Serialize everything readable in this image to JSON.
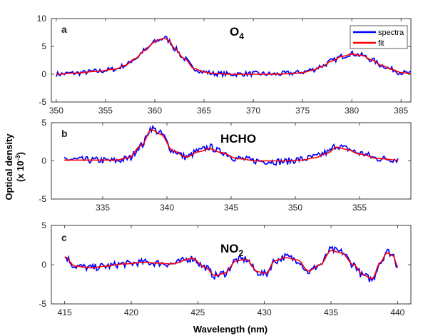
{
  "figure": {
    "ylabel": "Optical density",
    "ylabel_unit_prefix": "(x 10",
    "ylabel_unit_exp": "-3",
    "ylabel_unit_suffix": ")",
    "xlabel": "Wavelength (nm)"
  },
  "legend": {
    "spectra": "spectra",
    "fit": "fit",
    "spectra_color": "#0000ff",
    "fit_color": "#ff0000"
  },
  "chart_data": [
    {
      "type": "line",
      "panel": "a",
      "species_main": "O",
      "species_sub": "4",
      "xlim": [
        349.5,
        386
      ],
      "ylim": [
        -5,
        10
      ],
      "xticks": [
        350,
        355,
        360,
        365,
        370,
        375,
        380,
        385
      ],
      "yticks": [
        -5,
        0,
        5,
        10
      ],
      "series": [
        {
          "name": "spectra",
          "x": [
            350,
            352,
            354,
            356,
            357,
            358,
            359,
            360,
            360.5,
            361,
            361.5,
            362,
            363,
            364,
            365,
            366,
            368,
            370,
            372,
            374,
            375,
            376,
            377,
            378,
            379,
            380,
            381,
            382,
            383,
            384,
            385,
            386
          ],
          "y": [
            0,
            0.2,
            0.5,
            0.9,
            1.6,
            2.8,
            4.3,
            5.8,
            6.2,
            6.6,
            5.9,
            4.6,
            2.8,
            1.0,
            0.4,
            0.1,
            0,
            0.1,
            0,
            0.2,
            0.4,
            0.8,
            1.5,
            2.4,
            3.2,
            3.7,
            3.4,
            2.6,
            1.6,
            0.9,
            0.3,
            0.1
          ]
        },
        {
          "name": "fit",
          "x": [
            350,
            352,
            354,
            356,
            357,
            358,
            359,
            360,
            360.5,
            361,
            361.5,
            362,
            363,
            364,
            365,
            366,
            368,
            370,
            372,
            374,
            375,
            376,
            377,
            378,
            379,
            380,
            381,
            382,
            383,
            384,
            385,
            386
          ],
          "y": [
            0,
            0.2,
            0.5,
            0.9,
            1.6,
            2.8,
            4.3,
            5.8,
            6.2,
            6.5,
            5.9,
            4.6,
            2.8,
            1.0,
            0.4,
            0.1,
            0,
            0,
            0,
            0.1,
            0.3,
            0.7,
            1.4,
            2.4,
            3.2,
            3.6,
            3.4,
            2.6,
            1.6,
            0.9,
            0.3,
            0.1
          ]
        }
      ]
    },
    {
      "type": "line",
      "panel": "b",
      "species_main": "HCHO",
      "species_sub": "",
      "xlim": [
        331,
        359
      ],
      "ylim": [
        -5,
        5
      ],
      "xticks": [
        335,
        340,
        345,
        350,
        355
      ],
      "yticks": [
        -5,
        0,
        5
      ],
      "series": [
        {
          "name": "spectra",
          "x": [
            332,
            334,
            336,
            337,
            338,
            338.8,
            339.5,
            340.5,
            341.5,
            342.5,
            343.3,
            344.2,
            345.5,
            347,
            349,
            350.5,
            351.5,
            352.5,
            353.2,
            354,
            355,
            356.5,
            358
          ],
          "y": [
            0.2,
            0.1,
            0,
            0.3,
            2.0,
            4.3,
            3.6,
            1.3,
            0.5,
            1.3,
            1.8,
            1.2,
            0.3,
            0,
            -0.1,
            0.2,
            0.5,
            1.1,
            2.0,
            1.6,
            1.0,
            0.3,
            0.2
          ]
        },
        {
          "name": "fit",
          "x": [
            332,
            334,
            336,
            337,
            338,
            338.8,
            339.5,
            340.5,
            341.5,
            342.5,
            343.3,
            344.2,
            345.5,
            347,
            349,
            350.5,
            351.5,
            352.5,
            353.2,
            354,
            355,
            356.5,
            358
          ],
          "y": [
            0.1,
            0.1,
            0.1,
            0.4,
            2.0,
            4.1,
            3.5,
            1.3,
            0.5,
            1.2,
            1.6,
            1.1,
            0.3,
            0,
            0,
            0.1,
            0.4,
            1.0,
            1.8,
            1.5,
            0.9,
            0.3,
            0.1
          ]
        }
      ]
    },
    {
      "type": "line",
      "panel": "c",
      "species_main": "NO",
      "species_sub": "2",
      "xlim": [
        414,
        441
      ],
      "ylim": [
        -5,
        5
      ],
      "xticks": [
        415,
        420,
        425,
        430,
        435,
        440
      ],
      "yticks": [
        -5,
        0,
        5
      ],
      "series": [
        {
          "name": "spectra",
          "x": [
            415,
            415.8,
            417,
            418,
            419.5,
            421,
            422,
            423,
            424.6,
            425.5,
            426.3,
            427,
            427.9,
            428.6,
            429.5,
            430.1,
            430.8,
            431.6,
            432.5,
            433.3,
            434.2,
            435,
            435.8,
            436.7,
            437.4,
            438.1,
            438.7,
            439.2,
            439.7,
            440
          ],
          "y": [
            1.0,
            -0.2,
            -0.4,
            -0.2,
            0.1,
            0.3,
            0.2,
            0.1,
            0.8,
            -0.3,
            -1.4,
            -1.1,
            0.6,
            0.7,
            -1.0,
            -1.2,
            0.5,
            1.0,
            0.6,
            -0.9,
            0,
            1.9,
            1.6,
            0,
            -1.4,
            -1.9,
            0.3,
            1.7,
            1.2,
            -0.3
          ]
        },
        {
          "name": "fit",
          "x": [
            415,
            415.8,
            417,
            418,
            419.5,
            421,
            422,
            423,
            424.6,
            425.5,
            426.3,
            427,
            427.9,
            428.6,
            429.5,
            430.1,
            430.8,
            431.6,
            432.5,
            433.3,
            434.2,
            435,
            435.8,
            436.7,
            437.4,
            438.1,
            438.7,
            439.2,
            439.7,
            440
          ],
          "y": [
            1.0,
            -0.2,
            -0.4,
            -0.2,
            0.1,
            0.3,
            0.2,
            0.1,
            0.8,
            -0.3,
            -1.4,
            -1.1,
            0.5,
            0.7,
            -0.9,
            -1.1,
            0.5,
            0.9,
            0.6,
            -0.8,
            0,
            1.8,
            1.5,
            0,
            -1.3,
            -1.8,
            0.3,
            1.5,
            1.1,
            -0.3
          ]
        }
      ]
    }
  ]
}
